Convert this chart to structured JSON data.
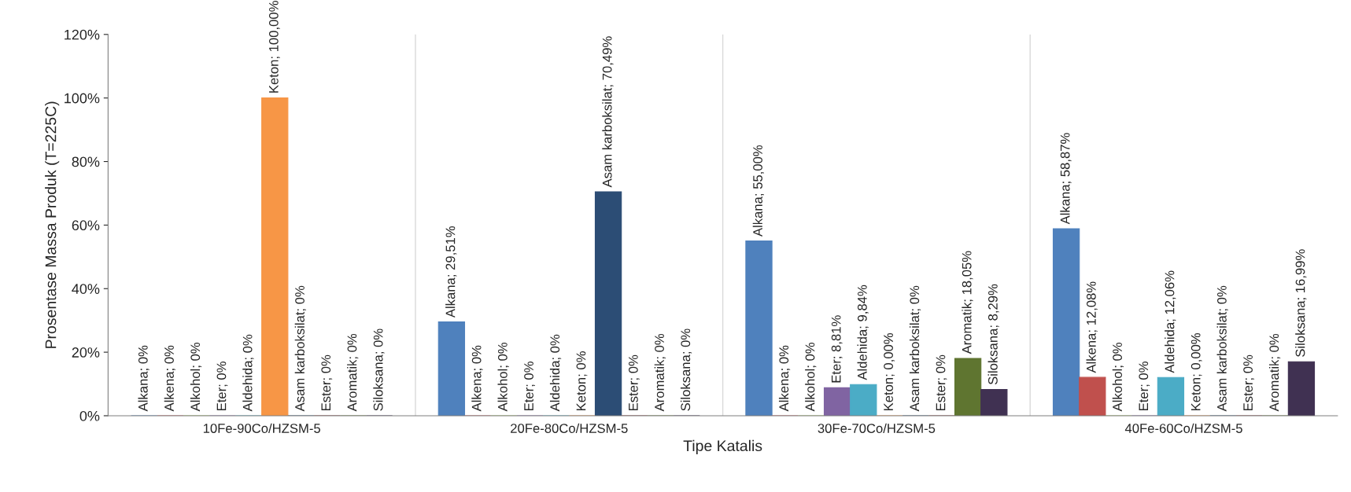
{
  "chart_data": {
    "type": "bar",
    "xlabel": "Tipe Katalis",
    "ylabel": "Prosentase Massa Produk (T=225C)",
    "categories": [
      "10Fe-90Co/HZSM-5",
      "20Fe-80Co/HZSM-5",
      "30Fe-70Co/HZSM-5",
      "40Fe-60Co/HZSM-5"
    ],
    "ylim": [
      0,
      120
    ],
    "yticks": [
      {
        "value": 0,
        "label": "0%"
      },
      {
        "value": 20,
        "label": "20%"
      },
      {
        "value": 40,
        "label": "40%"
      },
      {
        "value": 60,
        "label": "60%"
      },
      {
        "value": 80,
        "label": "80%"
      },
      {
        "value": 100,
        "label": "100%"
      },
      {
        "value": 120,
        "label": "120%"
      }
    ],
    "series": [
      {
        "color": "#4f81bd",
        "values": [
          0,
          29.51,
          55.0,
          58.87
        ],
        "value_labels": [
          "Alkana; 0%",
          "Alkana; 29,51%",
          "Alkana; 55,00%",
          "Alkana; 58,87%"
        ]
      },
      {
        "color": "#c0504d",
        "values": [
          0,
          0,
          0,
          12.08
        ],
        "value_labels": [
          "Alkena; 0%",
          "Alkena; 0%",
          "Alkena; 0%",
          "Alkena; 12,08%"
        ]
      },
      {
        "color": "#9bbb59",
        "values": [
          0,
          0,
          0,
          0
        ],
        "value_labels": [
          "Alkohol; 0%",
          "Alkohol; 0%",
          "Alkohol; 0%",
          "Alkohol; 0%"
        ]
      },
      {
        "color": "#8064a2",
        "values": [
          0,
          0,
          8.81,
          0
        ],
        "value_labels": [
          "Eter; 0%",
          "Eter; 0%",
          "Eter; 8,81%",
          "Eter; 0%"
        ]
      },
      {
        "color": "#4bacc6",
        "values": [
          0,
          0,
          9.84,
          12.06
        ],
        "value_labels": [
          "Aldehida; 0%",
          "Aldehida; 0%",
          "Aldehida; 9,84%",
          "Aldehida; 12,06%"
        ]
      },
      {
        "color": "#f79646",
        "values": [
          100.0,
          0,
          0.0,
          0.0
        ],
        "value_labels": [
          "Keton; 100,00%",
          "Keton; 0%",
          "Keton; 0,00%",
          "Keton; 0,00%"
        ]
      },
      {
        "color": "#2c4d75",
        "values": [
          0,
          70.49,
          0,
          0
        ],
        "value_labels": [
          "Asam karboksilat; 0%",
          "Asam karboksilat; 70,49%",
          "Asam karboksilat; 0%",
          "Asam karboksilat; 0%"
        ]
      },
      {
        "color": "#772c2a",
        "values": [
          0,
          0,
          0,
          0
        ],
        "value_labels": [
          "Ester; 0%",
          "Ester; 0%",
          "Ester; 0%",
          "Ester; 0%"
        ]
      },
      {
        "color": "#5f7530",
        "values": [
          0,
          0,
          18.05,
          0
        ],
        "value_labels": [
          "Aromatik; 0%",
          "Aromatik; 0%",
          "Aromatik; 18,05%",
          "Aromatik; 0%"
        ]
      },
      {
        "color": "#403152",
        "values": [
          0,
          0,
          8.29,
          16.99
        ],
        "value_labels": [
          "Siloksana; 0%",
          "Siloksana; 0%",
          "Siloksana; 8,29%",
          "Siloksana; 16,99%"
        ]
      }
    ]
  }
}
